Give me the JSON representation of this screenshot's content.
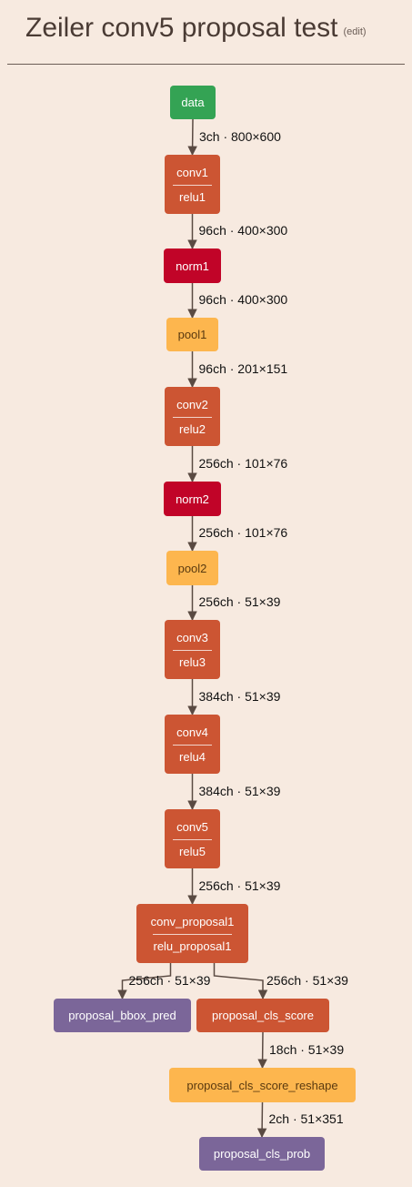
{
  "header": {
    "title": "Zeiler conv5 proposal test",
    "edit_label": "(edit)"
  },
  "colors": {
    "background": "#f7eae0",
    "conv": "#cc5533",
    "data": "#34a354",
    "norm": "#c10428",
    "pool": "#fdb64e",
    "output": "#7b6699",
    "edge": "#5a4a42"
  },
  "nodes": [
    {
      "id": "data",
      "lines": [
        "data"
      ],
      "kind": "data"
    },
    {
      "id": "conv1",
      "lines": [
        "conv1",
        "relu1"
      ],
      "kind": "conv"
    },
    {
      "id": "norm1",
      "lines": [
        "norm1"
      ],
      "kind": "norm"
    },
    {
      "id": "pool1",
      "lines": [
        "pool1"
      ],
      "kind": "pool"
    },
    {
      "id": "conv2",
      "lines": [
        "conv2",
        "relu2"
      ],
      "kind": "conv"
    },
    {
      "id": "norm2",
      "lines": [
        "norm2"
      ],
      "kind": "norm"
    },
    {
      "id": "pool2",
      "lines": [
        "pool2"
      ],
      "kind": "pool"
    },
    {
      "id": "conv3",
      "lines": [
        "conv3",
        "relu3"
      ],
      "kind": "conv"
    },
    {
      "id": "conv4",
      "lines": [
        "conv4",
        "relu4"
      ],
      "kind": "conv"
    },
    {
      "id": "conv5",
      "lines": [
        "conv5",
        "relu5"
      ],
      "kind": "conv"
    },
    {
      "id": "conv_proposal1",
      "lines": [
        "conv_proposal1",
        "relu_proposal1"
      ],
      "kind": "conv"
    },
    {
      "id": "proposal_bbox_pred",
      "lines": [
        "proposal_bbox_pred"
      ],
      "kind": "output"
    },
    {
      "id": "proposal_cls_score",
      "lines": [
        "proposal_cls_score"
      ],
      "kind": "conv"
    },
    {
      "id": "proposal_cls_score_reshape",
      "lines": [
        "proposal_cls_score_reshape"
      ],
      "kind": "pool"
    },
    {
      "id": "proposal_cls_prob",
      "lines": [
        "proposal_cls_prob"
      ],
      "kind": "output"
    }
  ],
  "edges": [
    {
      "from": "data",
      "to": "conv1",
      "label": "3ch · 800×600"
    },
    {
      "from": "conv1",
      "to": "norm1",
      "label": "96ch · 400×300"
    },
    {
      "from": "norm1",
      "to": "pool1",
      "label": "96ch · 400×300"
    },
    {
      "from": "pool1",
      "to": "conv2",
      "label": "96ch · 201×151"
    },
    {
      "from": "conv2",
      "to": "norm2",
      "label": "256ch · 101×76"
    },
    {
      "from": "norm2",
      "to": "pool2",
      "label": "256ch · 101×76"
    },
    {
      "from": "pool2",
      "to": "conv3",
      "label": "256ch · 51×39"
    },
    {
      "from": "conv3",
      "to": "conv4",
      "label": "384ch · 51×39"
    },
    {
      "from": "conv4",
      "to": "conv5",
      "label": "384ch · 51×39"
    },
    {
      "from": "conv5",
      "to": "conv_proposal1",
      "label": "256ch · 51×39"
    },
    {
      "from": "conv_proposal1",
      "to": "proposal_bbox_pred",
      "label": "256ch · 51×39"
    },
    {
      "from": "conv_proposal1",
      "to": "proposal_cls_score",
      "label": "256ch · 51×39"
    },
    {
      "from": "proposal_cls_score",
      "to": "proposal_cls_score_reshape",
      "label": "18ch · 51×39"
    },
    {
      "from": "proposal_cls_score_reshape",
      "to": "proposal_cls_prob",
      "label": "2ch · 51×351"
    }
  ]
}
